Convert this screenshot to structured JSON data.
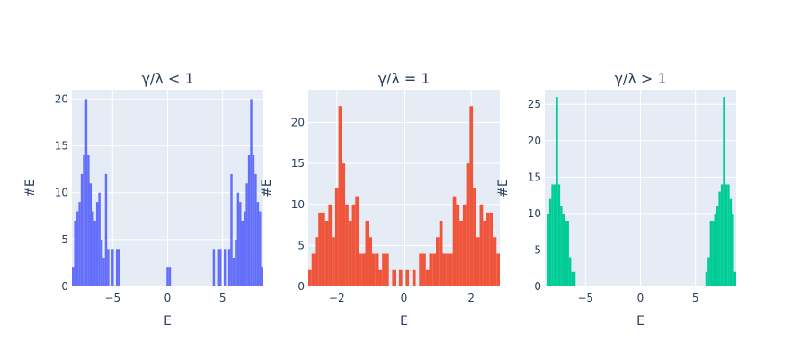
{
  "chart_data": [
    {
      "type": "histogram",
      "title": "γ/λ < 1",
      "xlabel": "E",
      "ylabel": "#E",
      "color": "#636efa",
      "xlim": [
        -8.7,
        8.7
      ],
      "ylim": [
        0,
        21
      ],
      "xticks": [
        {
          "v": -5,
          "label": "−5"
        },
        {
          "v": 0,
          "label": "0"
        },
        {
          "v": 5,
          "label": "5"
        }
      ],
      "yticks": [
        0,
        5,
        10,
        15,
        20
      ],
      "bin_width": 0.2,
      "bins": [
        [
          -8.7,
          2
        ],
        [
          -8.5,
          7
        ],
        [
          -8.3,
          8
        ],
        [
          -8.1,
          9
        ],
        [
          -7.9,
          12
        ],
        [
          -7.7,
          14
        ],
        [
          -7.5,
          20
        ],
        [
          -7.3,
          14
        ],
        [
          -7.1,
          11
        ],
        [
          -6.9,
          8
        ],
        [
          -6.7,
          7
        ],
        [
          -6.5,
          9
        ],
        [
          -6.3,
          10
        ],
        [
          -6.1,
          5
        ],
        [
          -5.9,
          3
        ],
        [
          -5.7,
          12
        ],
        [
          -5.5,
          4
        ],
        [
          -5.1,
          4
        ],
        [
          -4.7,
          4
        ],
        [
          -4.5,
          4
        ],
        [
          -0.1,
          2
        ],
        [
          0.1,
          2
        ],
        [
          4.1,
          4
        ],
        [
          4.5,
          4
        ],
        [
          4.7,
          4
        ],
        [
          5.1,
          4
        ],
        [
          5.5,
          4
        ],
        [
          5.7,
          12
        ],
        [
          5.9,
          3
        ],
        [
          6.1,
          5
        ],
        [
          6.3,
          10
        ],
        [
          6.5,
          9
        ],
        [
          6.7,
          7
        ],
        [
          6.9,
          8
        ],
        [
          7.1,
          11
        ],
        [
          7.3,
          14
        ],
        [
          7.5,
          20
        ],
        [
          7.7,
          14
        ],
        [
          7.9,
          12
        ],
        [
          8.1,
          9
        ],
        [
          8.3,
          8
        ],
        [
          8.5,
          2
        ]
      ]
    },
    {
      "type": "histogram",
      "title": "γ/λ = 1",
      "xlabel": "E",
      "ylabel": "#E",
      "color": "#ef553b",
      "xlim": [
        -2.85,
        2.85
      ],
      "ylim": [
        0,
        24
      ],
      "xticks": [
        {
          "v": -2,
          "label": "−2"
        },
        {
          "v": 0,
          "label": "0"
        },
        {
          "v": 2,
          "label": "2"
        }
      ],
      "yticks": [
        0,
        5,
        10,
        15,
        20
      ],
      "bin_width": 0.1,
      "bins": [
        [
          -2.85,
          2
        ],
        [
          -2.75,
          4
        ],
        [
          -2.65,
          6
        ],
        [
          -2.55,
          9
        ],
        [
          -2.45,
          9
        ],
        [
          -2.35,
          8
        ],
        [
          -2.25,
          10
        ],
        [
          -2.15,
          6
        ],
        [
          -2.05,
          12
        ],
        [
          -1.95,
          22
        ],
        [
          -1.85,
          15
        ],
        [
          -1.75,
          10
        ],
        [
          -1.65,
          8
        ],
        [
          -1.55,
          10
        ],
        [
          -1.45,
          11
        ],
        [
          -1.35,
          4
        ],
        [
          -1.25,
          4
        ],
        [
          -1.15,
          8
        ],
        [
          -1.05,
          6
        ],
        [
          -0.95,
          4
        ],
        [
          -0.85,
          4
        ],
        [
          -0.75,
          2
        ],
        [
          -0.65,
          4
        ],
        [
          -0.55,
          4
        ],
        [
          -0.35,
          2
        ],
        [
          -0.15,
          2
        ],
        [
          0.05,
          2
        ],
        [
          0.25,
          2
        ],
        [
          0.45,
          4
        ],
        [
          0.55,
          4
        ],
        [
          0.65,
          2
        ],
        [
          0.75,
          4
        ],
        [
          0.85,
          4
        ],
        [
          0.95,
          6
        ],
        [
          1.05,
          8
        ],
        [
          1.15,
          4
        ],
        [
          1.25,
          4
        ],
        [
          1.35,
          4
        ],
        [
          1.45,
          11
        ],
        [
          1.55,
          10
        ],
        [
          1.65,
          8
        ],
        [
          1.75,
          10
        ],
        [
          1.85,
          15
        ],
        [
          1.95,
          22
        ],
        [
          2.05,
          12
        ],
        [
          2.15,
          6
        ],
        [
          2.25,
          10
        ],
        [
          2.35,
          8
        ],
        [
          2.45,
          9
        ],
        [
          2.55,
          9
        ],
        [
          2.65,
          6
        ],
        [
          2.75,
          4
        ]
      ]
    },
    {
      "type": "histogram",
      "title": "γ/λ > 1",
      "xlabel": "E",
      "ylabel": "#E",
      "color": "#00cc96",
      "xlim": [
        -8.7,
        8.7
      ],
      "ylim": [
        0,
        27
      ],
      "xticks": [
        {
          "v": -5,
          "label": "−5"
        },
        {
          "v": 0,
          "label": "0"
        },
        {
          "v": 5,
          "label": "5"
        }
      ],
      "yticks": [
        0,
        5,
        10,
        15,
        20,
        25
      ],
      "bin_width": 0.2,
      "bins": [
        [
          -8.5,
          10
        ],
        [
          -8.3,
          12
        ],
        [
          -8.1,
          14
        ],
        [
          -7.9,
          14
        ],
        [
          -7.7,
          26
        ],
        [
          -7.5,
          14
        ],
        [
          -7.3,
          11
        ],
        [
          -7.1,
          10
        ],
        [
          -6.9,
          9
        ],
        [
          -6.7,
          9
        ],
        [
          -6.5,
          4
        ],
        [
          -6.3,
          2
        ],
        [
          -6.1,
          2
        ],
        [
          5.9,
          2
        ],
        [
          6.1,
          4
        ],
        [
          6.3,
          9
        ],
        [
          6.5,
          9
        ],
        [
          6.7,
          10
        ],
        [
          6.9,
          11
        ],
        [
          7.1,
          13
        ],
        [
          7.3,
          14
        ],
        [
          7.5,
          26
        ],
        [
          7.7,
          14
        ],
        [
          7.9,
          14
        ],
        [
          8.1,
          12
        ],
        [
          8.3,
          10
        ],
        [
          8.5,
          2
        ]
      ]
    }
  ]
}
